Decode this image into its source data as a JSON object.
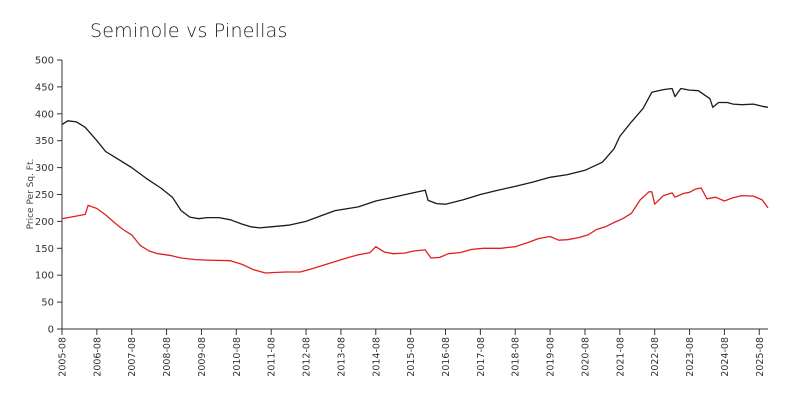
{
  "chart_data": {
    "type": "line",
    "title": "Seminole vs Pinellas",
    "xlabel": "",
    "ylabel": "Price Per Sq. Ft.",
    "ylim": [
      0,
      500
    ],
    "yticks": [
      0,
      50,
      100,
      150,
      200,
      250,
      300,
      350,
      400,
      450,
      500
    ],
    "xlim": [
      "2005-08",
      "2025-11"
    ],
    "xticks": [
      "2005-08",
      "2006-08",
      "2007-08",
      "2008-08",
      "2009-08",
      "2010-08",
      "2011-08",
      "2012-08",
      "2013-08",
      "2014-08",
      "2015-08",
      "2016-08",
      "2017-08",
      "2018-08",
      "2019-08",
      "2020-08",
      "2021-08",
      "2022-08",
      "2023-08",
      "2024-08",
      "2025-08"
    ],
    "grid": false,
    "legend": "none",
    "series": [
      {
        "color": "#1a1a1a",
        "points": [
          [
            "2005-08",
            380
          ],
          [
            "2005-10",
            387
          ],
          [
            "2006-01",
            385
          ],
          [
            "2006-04",
            375
          ],
          [
            "2006-08",
            350
          ],
          [
            "2006-11",
            330
          ],
          [
            "2007-02",
            320
          ],
          [
            "2007-08",
            300
          ],
          [
            "2008-01",
            280
          ],
          [
            "2008-06",
            262
          ],
          [
            "2008-10",
            245
          ],
          [
            "2009-01",
            220
          ],
          [
            "2009-04",
            208
          ],
          [
            "2009-07",
            205
          ],
          [
            "2009-10",
            207
          ],
          [
            "2010-02",
            207
          ],
          [
            "2010-06",
            203
          ],
          [
            "2010-10",
            195
          ],
          [
            "2011-01",
            190
          ],
          [
            "2011-04",
            188
          ],
          [
            "2011-08",
            190
          ],
          [
            "2012-02",
            193
          ],
          [
            "2012-08",
            200
          ],
          [
            "2013-02",
            212
          ],
          [
            "2013-06",
            220
          ],
          [
            "2014-02",
            227
          ],
          [
            "2014-08",
            238
          ],
          [
            "2015-02",
            245
          ],
          [
            "2015-08",
            252
          ],
          [
            "2016-01",
            258
          ],
          [
            "2016-02",
            239
          ],
          [
            "2016-05",
            233
          ],
          [
            "2016-08",
            232
          ],
          [
            "2017-02",
            240
          ],
          [
            "2017-08",
            250
          ],
          [
            "2018-02",
            258
          ],
          [
            "2018-08",
            265
          ],
          [
            "2019-02",
            273
          ],
          [
            "2019-08",
            282
          ],
          [
            "2020-02",
            287
          ],
          [
            "2020-08",
            295
          ],
          [
            "2021-02",
            310
          ],
          [
            "2021-06",
            335
          ],
          [
            "2021-08",
            358
          ],
          [
            "2021-12",
            385
          ],
          [
            "2022-04",
            410
          ],
          [
            "2022-07",
            440
          ],
          [
            "2022-11",
            445
          ],
          [
            "2023-02",
            447
          ],
          [
            "2023-03",
            432
          ],
          [
            "2023-05",
            447
          ],
          [
            "2023-08",
            444
          ],
          [
            "2023-11",
            443
          ],
          [
            "2024-03",
            428
          ],
          [
            "2024-04",
            412
          ],
          [
            "2024-06",
            421
          ],
          [
            "2024-09",
            421
          ],
          [
            "2024-11",
            418
          ],
          [
            "2025-02",
            417
          ],
          [
            "2025-06",
            418
          ],
          [
            "2025-09",
            414
          ],
          [
            "2025-11",
            412
          ]
        ]
      },
      {
        "color": "#e02020",
        "points": [
          [
            "2005-08",
            205
          ],
          [
            "2005-11",
            208
          ],
          [
            "2006-02",
            211
          ],
          [
            "2006-04",
            213
          ],
          [
            "2006-05",
            230
          ],
          [
            "2006-08",
            224
          ],
          [
            "2006-11",
            212
          ],
          [
            "2007-02",
            198
          ],
          [
            "2007-05",
            185
          ],
          [
            "2007-08",
            175
          ],
          [
            "2007-11",
            155
          ],
          [
            "2008-02",
            145
          ],
          [
            "2008-05",
            140
          ],
          [
            "2008-09",
            137
          ],
          [
            "2009-01",
            132
          ],
          [
            "2009-06",
            129
          ],
          [
            "2009-10",
            128
          ],
          [
            "2010-06",
            127
          ],
          [
            "2010-10",
            120
          ],
          [
            "2011-02",
            110
          ],
          [
            "2011-06",
            104
          ],
          [
            "2011-09",
            105
          ],
          [
            "2012-01",
            106
          ],
          [
            "2012-06",
            106
          ],
          [
            "2012-10",
            112
          ],
          [
            "2013-04",
            122
          ],
          [
            "2013-10",
            132
          ],
          [
            "2014-02",
            138
          ],
          [
            "2014-06",
            142
          ],
          [
            "2014-08",
            153
          ],
          [
            "2014-11",
            143
          ],
          [
            "2015-02",
            140
          ],
          [
            "2015-06",
            141
          ],
          [
            "2015-09",
            145
          ],
          [
            "2016-01",
            147
          ],
          [
            "2016-03",
            132
          ],
          [
            "2016-06",
            133
          ],
          [
            "2016-09",
            140
          ],
          [
            "2017-01",
            142
          ],
          [
            "2017-05",
            148
          ],
          [
            "2017-09",
            150
          ],
          [
            "2018-03",
            150
          ],
          [
            "2018-08",
            153
          ],
          [
            "2018-12",
            160
          ],
          [
            "2019-04",
            168
          ],
          [
            "2019-08",
            172
          ],
          [
            "2019-11",
            165
          ],
          [
            "2020-02",
            166
          ],
          [
            "2020-06",
            170
          ],
          [
            "2020-09",
            175
          ],
          [
            "2020-12",
            185
          ],
          [
            "2021-03",
            190
          ],
          [
            "2021-06",
            198
          ],
          [
            "2021-09",
            205
          ],
          [
            "2021-12",
            215
          ],
          [
            "2022-03",
            240
          ],
          [
            "2022-06",
            255
          ],
          [
            "2022-07",
            255
          ],
          [
            "2022-08",
            232
          ],
          [
            "2022-11",
            248
          ],
          [
            "2023-02",
            253
          ],
          [
            "2023-03",
            245
          ],
          [
            "2023-06",
            252
          ],
          [
            "2023-08",
            254
          ],
          [
            "2023-10",
            260
          ],
          [
            "2023-12",
            262
          ],
          [
            "2024-02",
            242
          ],
          [
            "2024-05",
            245
          ],
          [
            "2024-08",
            238
          ],
          [
            "2024-11",
            244
          ],
          [
            "2025-02",
            248
          ],
          [
            "2025-06",
            247
          ],
          [
            "2025-09",
            240
          ],
          [
            "2025-11",
            225
          ]
        ]
      }
    ]
  }
}
